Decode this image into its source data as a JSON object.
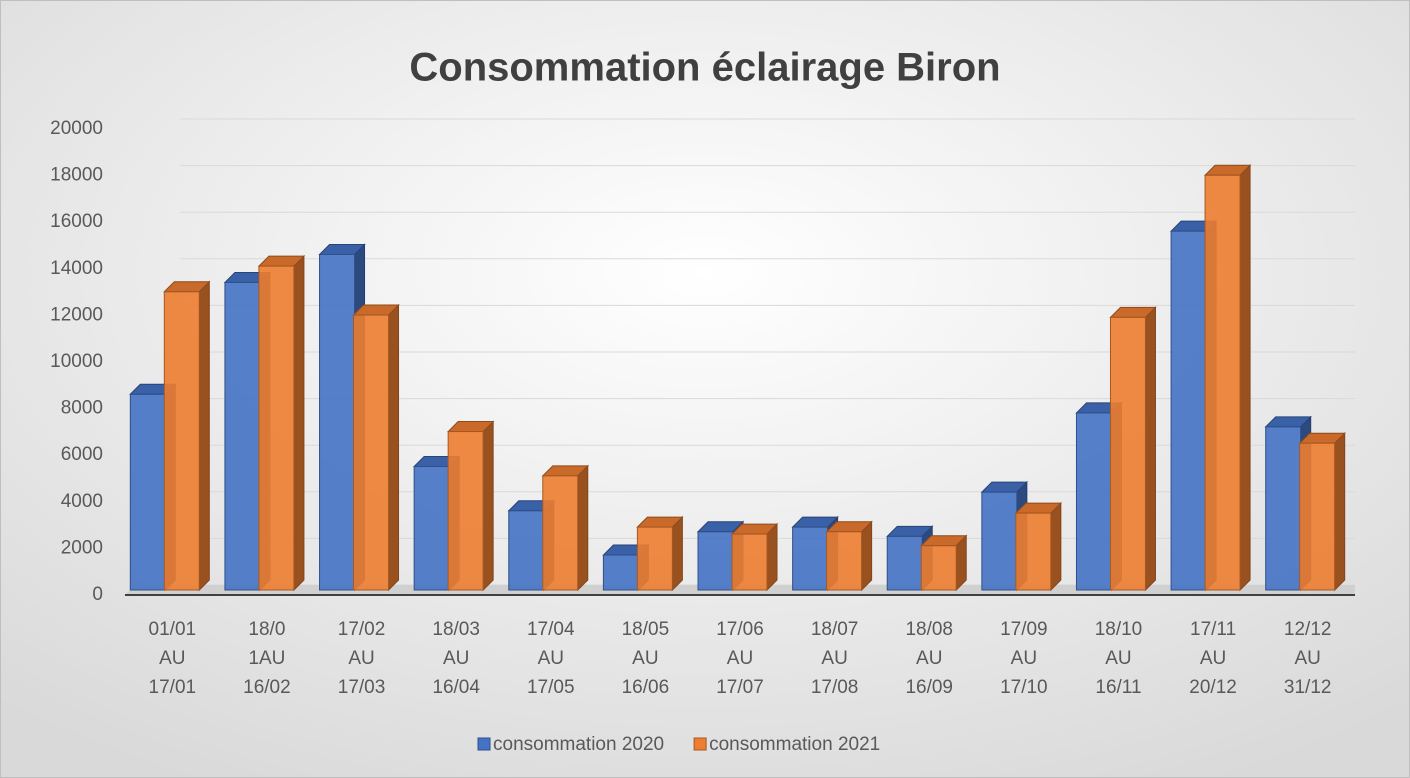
{
  "chart_data": {
    "type": "bar3d",
    "title": "Consommation éclairage Biron",
    "categories": [
      "01/01 AU 17/01",
      "18/0 1AU 16/02",
      "17/02 AU 17/03",
      "18/03 AU 16/04",
      "17/04 AU 17/05",
      "18/05 AU 16/06",
      "17/06 AU 17/07",
      "18/07 AU 17/08",
      "18/08 AU 16/09",
      "17/09 AU 17/10",
      "18/10 AU 16/11",
      "17/11 AU 20/12",
      "12/12 AU 31/12"
    ],
    "series": [
      {
        "name": "consommation 2020",
        "color": "#4472c4",
        "values": [
          8400,
          13200,
          14400,
          5300,
          3400,
          1500,
          2500,
          2700,
          2300,
          4200,
          7600,
          15400,
          7000
        ]
      },
      {
        "name": "consommation 2021",
        "color": "#ed7d31",
        "values": [
          12800,
          13900,
          11800,
          6800,
          4900,
          2700,
          2400,
          2500,
          1900,
          3300,
          11700,
          17800,
          6300
        ]
      }
    ],
    "ylim": [
      0,
      20000
    ],
    "yticks": [
      0,
      2000,
      4000,
      6000,
      8000,
      10000,
      12000,
      14000,
      16000,
      18000,
      20000
    ],
    "grid": true,
    "legend": "bottom"
  }
}
